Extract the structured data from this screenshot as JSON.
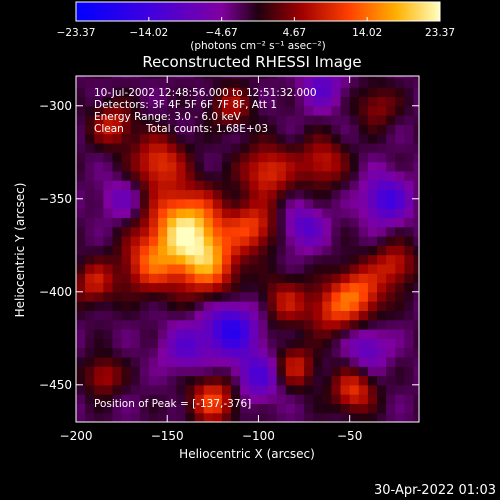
{
  "chart_data": {
    "type": "heatmap",
    "title": "Reconstructed RHESSI Image",
    "xlabel": "Heliocentric X (arcsec)",
    "ylabel": "Heliocentric Y (arcsec)",
    "xlim": [
      -200,
      -12
    ],
    "ylim": [
      -470,
      -284
    ],
    "x_ticks": [
      -200,
      -150,
      -100,
      -50
    ],
    "x_tick_labels": [
      "−200",
      "−150",
      "−100",
      "−50"
    ],
    "y_ticks": [
      -300,
      -350,
      -400,
      -450
    ],
    "y_tick_labels": [
      "−300",
      "−350",
      "−400",
      "−450"
    ],
    "colorbar": {
      "min": -23.37,
      "max": 23.37,
      "ticks": [
        -23.37,
        -14.02,
        -4.67,
        4.67,
        14.02,
        23.37
      ],
      "tick_labels": [
        "−23.37",
        "−14.02",
        "−4.67",
        "4.67",
        "14.02",
        "23.37"
      ],
      "unit_label": "(photons cm⁻² s⁻¹ asec⁻²)"
    },
    "annotations": {
      "time_range": "10-Jul-2002 12:48:56.000 to 12:51:32.000",
      "detectors": "Detectors: 3F 4F 5F 6F 7F 8F, Att 1",
      "energy_range": "Energy Range: 3.0 - 6.0 keV",
      "clean_label": "Clean",
      "total_counts": "Total counts: 1.68E+03",
      "peak_position": "Position of Peak = [-137,-376]"
    },
    "peak": {
      "x": -137,
      "y": -376
    },
    "blobs": [
      {
        "x": -140,
        "y": -365,
        "amp": 22,
        "r": 14
      },
      {
        "x": -128,
        "y": -385,
        "amp": 15,
        "r": 12
      },
      {
        "x": -160,
        "y": -385,
        "amp": 12,
        "r": 11
      },
      {
        "x": -103,
        "y": -365,
        "amp": 12,
        "r": 9
      },
      {
        "x": -95,
        "y": -335,
        "amp": 12,
        "r": 10
      },
      {
        "x": -65,
        "y": -330,
        "amp": 10,
        "r": 9
      },
      {
        "x": -155,
        "y": -330,
        "amp": 12,
        "r": 10
      },
      {
        "x": -180,
        "y": -310,
        "amp": 10,
        "r": 8
      },
      {
        "x": -45,
        "y": -400,
        "amp": 14,
        "r": 10
      },
      {
        "x": -60,
        "y": -410,
        "amp": 10,
        "r": 9
      },
      {
        "x": -25,
        "y": -385,
        "amp": 10,
        "r": 8
      },
      {
        "x": -85,
        "y": -405,
        "amp": 9,
        "r": 9
      },
      {
        "x": -125,
        "y": -458,
        "amp": 13,
        "r": 9
      },
      {
        "x": -80,
        "y": -440,
        "amp": 10,
        "r": 8
      },
      {
        "x": -48,
        "y": -453,
        "amp": 12,
        "r": 8
      },
      {
        "x": -185,
        "y": -445,
        "amp": 9,
        "r": 7
      },
      {
        "x": -190,
        "y": -395,
        "amp": 10,
        "r": 8
      },
      {
        "x": -115,
        "y": -300,
        "amp": 8,
        "r": 8
      },
      {
        "x": -35,
        "y": -300,
        "amp": 7,
        "r": 8
      },
      {
        "x": -30,
        "y": -350,
        "amp": -12,
        "r": 9
      },
      {
        "x": -115,
        "y": -420,
        "amp": -15,
        "r": 10
      },
      {
        "x": -100,
        "y": -445,
        "amp": -10,
        "r": 9
      },
      {
        "x": -140,
        "y": -430,
        "amp": -8,
        "r": 9
      },
      {
        "x": -75,
        "y": -365,
        "amp": -9,
        "r": 8
      },
      {
        "x": -175,
        "y": -350,
        "amp": -6,
        "r": 8
      },
      {
        "x": -65,
        "y": -290,
        "amp": -8,
        "r": 8
      },
      {
        "x": -40,
        "y": -430,
        "amp": -8,
        "r": 8
      }
    ]
  },
  "footer": {
    "timestamp": "30-Apr-2022 01:03"
  }
}
